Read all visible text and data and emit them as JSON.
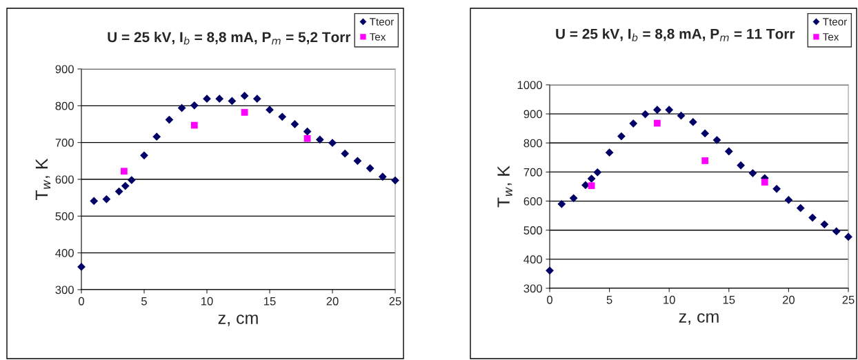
{
  "chart_data": [
    {
      "type": "scatter",
      "title": "U = 25 kV, I$_{b}$ = 8,8 mA, P$_{m}$ = 5,2 Torr",
      "xlabel": "z, cm",
      "ylabel": "T$_{w}$, K",
      "xlim": [
        0,
        25
      ],
      "xticks": [
        0,
        5,
        10,
        15,
        20,
        25
      ],
      "ylim": [
        300,
        900
      ],
      "yticks": [
        300,
        400,
        500,
        600,
        700,
        800,
        900
      ],
      "grid": "y",
      "legend": "top right",
      "series": [
        {
          "name": "Tteor",
          "color": "#000066",
          "marker": "diamond",
          "x": [
            0,
            1,
            2,
            3,
            3.5,
            4,
            5,
            6,
            7,
            8,
            9,
            10,
            11,
            12,
            13,
            14,
            15,
            16,
            17,
            18,
            19,
            20,
            21,
            22,
            23,
            24,
            25
          ],
          "values": [
            362,
            541,
            546,
            567,
            582,
            598,
            665,
            716,
            762,
            794,
            801,
            819,
            819,
            813,
            827,
            819,
            789,
            770,
            750,
            730,
            708,
            699,
            670,
            650,
            630,
            607,
            597
          ]
        },
        {
          "name": "Tex",
          "color": "#ff00ff",
          "marker": "square",
          "x": [
            3.4,
            9,
            13,
            18
          ],
          "values": [
            622,
            747,
            782,
            711
          ]
        }
      ]
    },
    {
      "type": "scatter",
      "title": "U = 25 kV, I$_{b}$ = 8,8 mA, P$_{m}$ = 11 Torr",
      "xlabel": "z, cm",
      "ylabel": "T$_{w}$, K",
      "xlim": [
        0,
        25
      ],
      "xticks": [
        0,
        5,
        10,
        15,
        20,
        25
      ],
      "ylim": [
        300,
        1000
      ],
      "yticks": [
        300,
        400,
        500,
        600,
        700,
        800,
        900,
        1000
      ],
      "grid": "y",
      "legend": "top right",
      "series": [
        {
          "name": "Tteor",
          "color": "#000066",
          "marker": "diamond",
          "x": [
            0,
            1,
            2,
            3,
            3.5,
            4,
            5,
            6,
            7,
            8,
            9,
            10,
            11,
            12,
            13,
            14,
            15,
            16,
            17,
            18,
            19,
            20,
            21,
            22,
            23,
            24,
            25
          ],
          "values": [
            361,
            590,
            610,
            655,
            677,
            699,
            767,
            823,
            867,
            899,
            914,
            914,
            894,
            872,
            833,
            810,
            771,
            723,
            696,
            679,
            642,
            604,
            576,
            543,
            520,
            496,
            477
          ]
        },
        {
          "name": "Tex",
          "color": "#ff00ff",
          "marker": "square",
          "x": [
            3.5,
            9,
            13,
            18
          ],
          "values": [
            653,
            868,
            739,
            665
          ]
        }
      ]
    }
  ]
}
